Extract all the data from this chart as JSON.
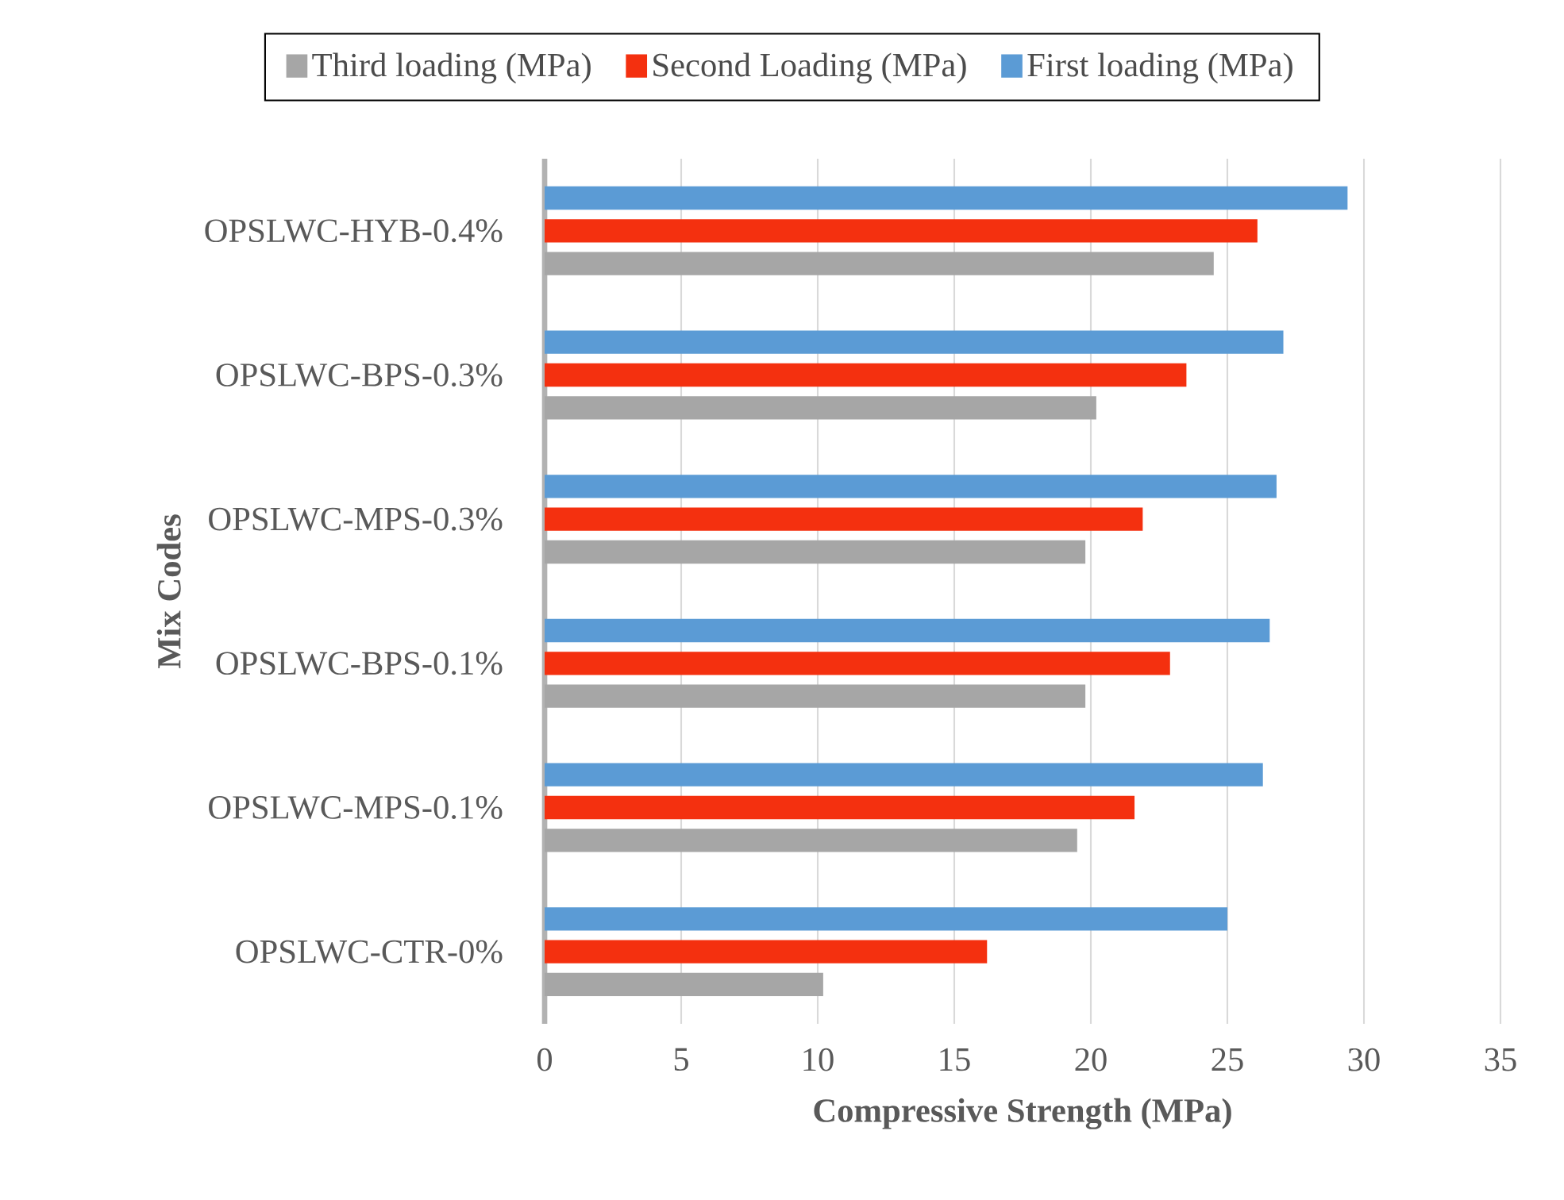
{
  "chart_data": {
    "type": "bar",
    "orientation": "horizontal",
    "categories": [
      "OPSLWC-HYB-0.4%",
      "OPSLWC-BPS-0.3%",
      "OPSLWC-MPS-0.3%",
      "OPSLWC-BPS-0.1%",
      "OPSLWC-MPS-0.1%",
      "OPSLWC-CTR-0%"
    ],
    "series": [
      {
        "name": "Third loading (MPa)",
        "color": "#a6a6a6",
        "values": [
          24.5,
          20.2,
          19.8,
          19.8,
          19.5,
          10.2
        ]
      },
      {
        "name": "Second Loading (MPa)",
        "color": "#f4300f",
        "values": [
          26.1,
          23.5,
          21.9,
          22.9,
          21.6,
          16.2
        ]
      },
      {
        "name": "First loading (MPa)",
        "color": "#5b9bd5",
        "values": [
          29.4,
          27.05,
          26.8,
          26.55,
          26.3,
          25.0
        ]
      }
    ],
    "xlim": [
      0,
      35
    ],
    "xticks": [
      0,
      5,
      10,
      15,
      20,
      25,
      30,
      35
    ],
    "xlabel": "Compressive Strength (MPa)",
    "ylabel": "Mix Codes",
    "grid": "x",
    "legend": "top"
  }
}
